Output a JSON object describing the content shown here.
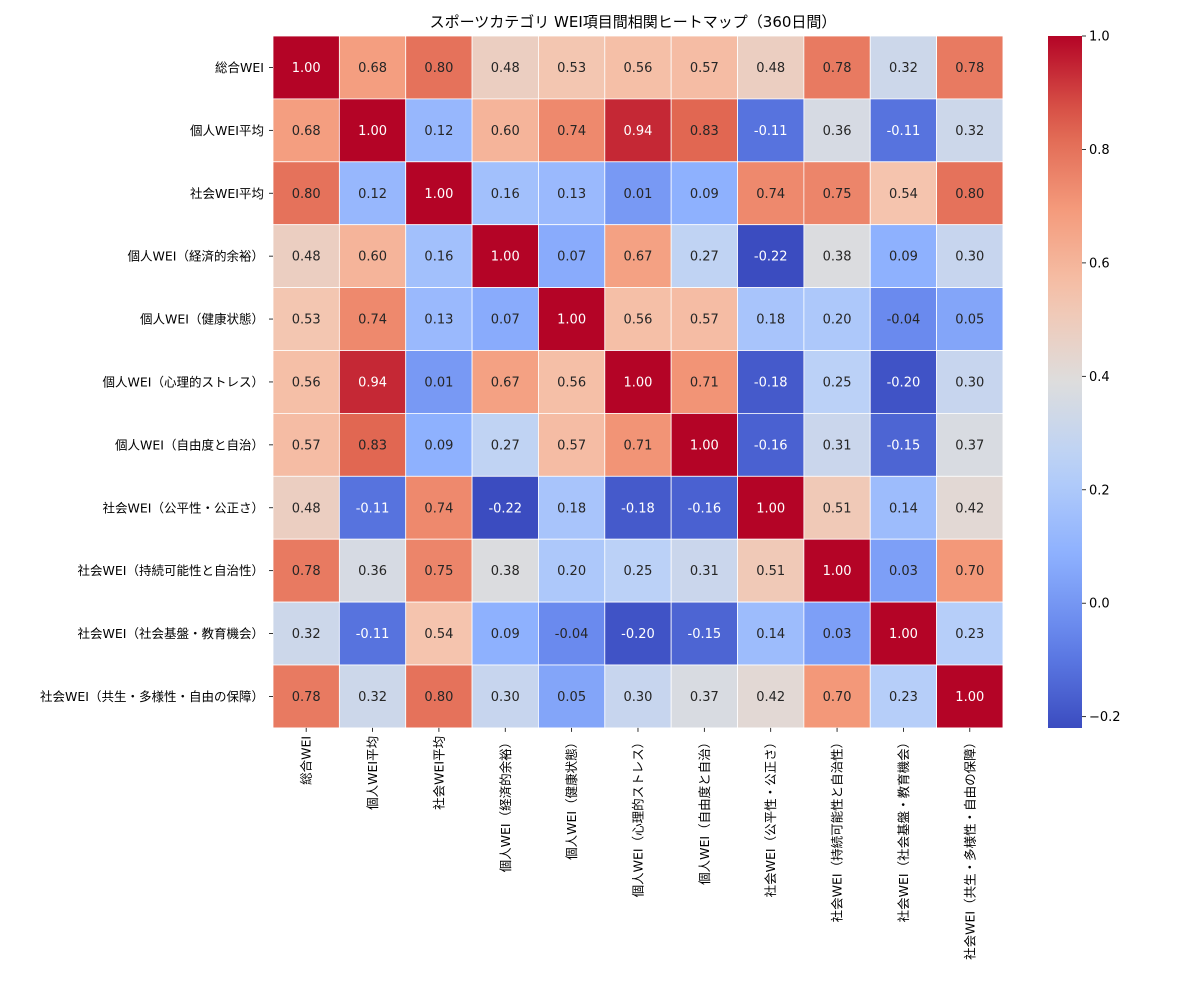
{
  "chart_data": {
    "type": "heatmap",
    "title": "スポーツカテゴリ WEI項目間相関ヒートマップ（360日間）",
    "labels": [
      "総合WEI",
      "個人WEI平均",
      "社会WEI平均",
      "個人WEI（経済的余裕）",
      "個人WEI（健康状態）",
      "個人WEI（心理的ストレス）",
      "個人WEI（自由度と自治）",
      "社会WEI（公平性・公正さ）",
      "社会WEI（持続可能性と自治性）",
      "社会WEI（社会基盤・教育機会）",
      "社会WEI（共生・多様性・自由の保障）"
    ],
    "matrix": [
      [
        1.0,
        0.68,
        0.8,
        0.48,
        0.53,
        0.56,
        0.57,
        0.48,
        0.78,
        0.32,
        0.78
      ],
      [
        0.68,
        1.0,
        0.12,
        0.6,
        0.74,
        0.94,
        0.83,
        -0.11,
        0.36,
        -0.11,
        0.32
      ],
      [
        0.8,
        0.12,
        1.0,
        0.16,
        0.13,
        0.01,
        0.09,
        0.74,
        0.75,
        0.54,
        0.8
      ],
      [
        0.48,
        0.6,
        0.16,
        1.0,
        0.07,
        0.67,
        0.27,
        -0.22,
        0.38,
        0.09,
        0.3
      ],
      [
        0.53,
        0.74,
        0.13,
        0.07,
        1.0,
        0.56,
        0.57,
        0.18,
        0.2,
        -0.04,
        0.05
      ],
      [
        0.56,
        0.94,
        0.01,
        0.67,
        0.56,
        1.0,
        0.71,
        -0.18,
        0.25,
        -0.2,
        0.3
      ],
      [
        0.57,
        0.83,
        0.09,
        0.27,
        0.57,
        0.71,
        1.0,
        -0.16,
        0.31,
        -0.15,
        0.37
      ],
      [
        0.48,
        -0.11,
        0.74,
        -0.22,
        0.18,
        -0.18,
        -0.16,
        1.0,
        0.51,
        0.14,
        0.42
      ],
      [
        0.78,
        0.36,
        0.75,
        0.38,
        0.2,
        0.25,
        0.31,
        0.51,
        1.0,
        0.03,
        0.7
      ],
      [
        0.32,
        -0.11,
        0.54,
        0.09,
        -0.04,
        -0.2,
        -0.15,
        0.14,
        0.03,
        1.0,
        0.23
      ],
      [
        0.78,
        0.32,
        0.8,
        0.3,
        0.05,
        0.3,
        0.37,
        0.42,
        0.7,
        0.23,
        1.0
      ]
    ],
    "vmin": -0.22,
    "vmax": 1.0,
    "colormap": "coolwarm",
    "colorbar_ticks": [
      1.0,
      0.8,
      0.6,
      0.4,
      0.2,
      0.0,
      -0.2
    ],
    "colorbar_tick_labels": [
      "1.0",
      "0.8",
      "0.6",
      "0.4",
      "0.2",
      "0.0",
      "−0.2"
    ]
  }
}
